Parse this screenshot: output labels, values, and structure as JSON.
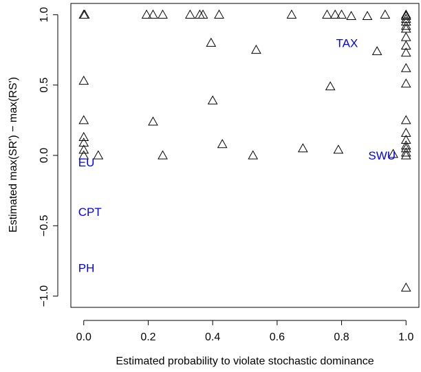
{
  "chart_data": {
    "type": "scatter",
    "title": "",
    "xlabel": "Estimated probability to violate stochastic dominance",
    "ylabel": "Estimated max(SR') − max(RS')",
    "xlim": [
      -0.04,
      1.04
    ],
    "ylim": [
      -1.08,
      1.08
    ],
    "x_ticks": [
      0.0,
      0.2,
      0.4,
      0.6,
      0.8,
      1.0
    ],
    "x_tick_labels": [
      "0.0",
      "0.2",
      "0.4",
      "0.6",
      "0.8",
      "1.0"
    ],
    "y_ticks": [
      -1.0,
      -0.5,
      0.0,
      0.5,
      1.0
    ],
    "y_tick_labels": [
      "−1.0",
      "−0.5",
      "0.0",
      "0.5",
      "1.0"
    ],
    "marker": "open-triangle",
    "grid": false,
    "legend": "none",
    "annotation_color": "#0000ee",
    "annotations": [
      {
        "text": "TAX",
        "x": 0.8,
        "y": 0.8
      },
      {
        "text": "SWU",
        "x": 0.9,
        "y": 0.0
      },
      {
        "text": "EU",
        "x": 0.0,
        "y": -0.05
      },
      {
        "text": "CPT",
        "x": 0.0,
        "y": -0.4
      },
      {
        "text": "PH",
        "x": 0.0,
        "y": -0.8
      }
    ],
    "points": [
      {
        "x": 0.0,
        "y": 1.0
      },
      {
        "x": 0.003,
        "y": 1.0
      },
      {
        "x": 0.195,
        "y": 1.0
      },
      {
        "x": 0.215,
        "y": 1.0
      },
      {
        "x": 0.245,
        "y": 1.0
      },
      {
        "x": 0.33,
        "y": 1.0
      },
      {
        "x": 0.36,
        "y": 1.0
      },
      {
        "x": 0.37,
        "y": 1.0
      },
      {
        "x": 0.42,
        "y": 1.0
      },
      {
        "x": 0.645,
        "y": 1.0
      },
      {
        "x": 0.755,
        "y": 1.0
      },
      {
        "x": 0.78,
        "y": 1.0
      },
      {
        "x": 0.8,
        "y": 1.0
      },
      {
        "x": 0.83,
        "y": 0.99
      },
      {
        "x": 0.88,
        "y": 0.99
      },
      {
        "x": 0.935,
        "y": 1.0
      },
      {
        "x": 0.395,
        "y": 0.8
      },
      {
        "x": 0.535,
        "y": 0.75
      },
      {
        "x": 0.91,
        "y": 0.74
      },
      {
        "x": 0.0,
        "y": 0.53
      },
      {
        "x": 0.765,
        "y": 0.49
      },
      {
        "x": 0.4,
        "y": 0.39
      },
      {
        "x": 0.0,
        "y": 0.25
      },
      {
        "x": 0.215,
        "y": 0.24
      },
      {
        "x": 0.0,
        "y": 0.13
      },
      {
        "x": 0.0,
        "y": 0.09
      },
      {
        "x": 0.0,
        "y": 0.04
      },
      {
        "x": 0.0,
        "y": 0.0
      },
      {
        "x": 0.045,
        "y": 0.0
      },
      {
        "x": 0.245,
        "y": 0.0
      },
      {
        "x": 0.43,
        "y": 0.08
      },
      {
        "x": 0.525,
        "y": 0.0
      },
      {
        "x": 0.68,
        "y": 0.05
      },
      {
        "x": 0.79,
        "y": 0.04
      },
      {
        "x": 0.96,
        "y": 0.01
      },
      {
        "x": 1.0,
        "y": 1.0
      },
      {
        "x": 1.0,
        "y": 0.99
      },
      {
        "x": 1.0,
        "y": 0.97
      },
      {
        "x": 1.0,
        "y": 0.95
      },
      {
        "x": 1.0,
        "y": 0.92
      },
      {
        "x": 1.0,
        "y": 0.9
      },
      {
        "x": 1.0,
        "y": 0.84
      },
      {
        "x": 1.0,
        "y": 0.78
      },
      {
        "x": 1.0,
        "y": 0.73
      },
      {
        "x": 1.0,
        "y": 0.62
      },
      {
        "x": 1.0,
        "y": 0.51
      },
      {
        "x": 1.0,
        "y": 0.25
      },
      {
        "x": 1.0,
        "y": 0.16
      },
      {
        "x": 1.0,
        "y": 0.11
      },
      {
        "x": 1.0,
        "y": 0.07
      },
      {
        "x": 1.0,
        "y": 0.05
      },
      {
        "x": 1.0,
        "y": 0.02
      },
      {
        "x": 1.0,
        "y": 0.0
      },
      {
        "x": 1.0,
        "y": -0.94
      }
    ]
  }
}
